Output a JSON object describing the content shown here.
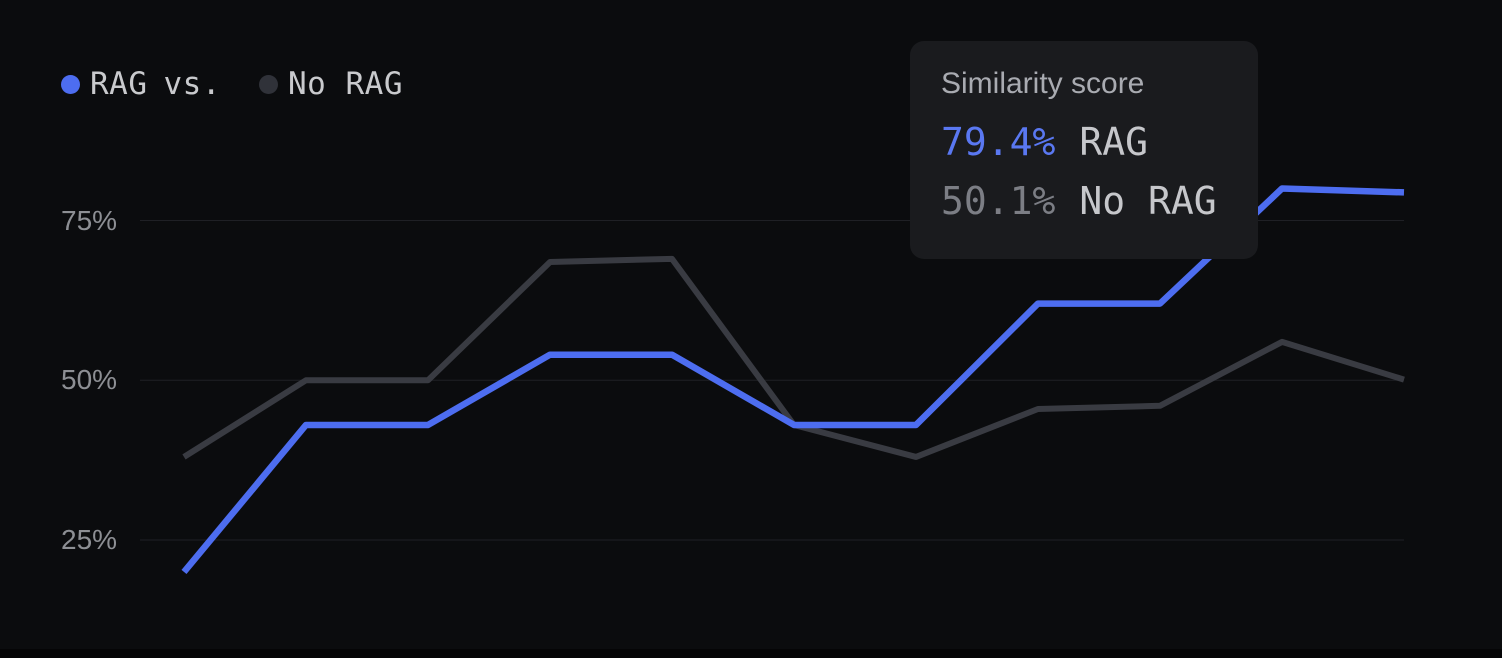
{
  "page": {
    "background": "#0b0c0e",
    "bottom_bar_color": "#050506"
  },
  "legend": {
    "items": [
      {
        "label": "RAG",
        "dot_color": "#4d6df0"
      },
      {
        "label": "No RAG",
        "dot_color": "#303239"
      }
    ],
    "separator": "vs.",
    "text_color": "#c9cacd"
  },
  "y_axis": {
    "ticks": [
      {
        "label": "75%",
        "value": 75
      },
      {
        "label": "50%",
        "value": 50
      },
      {
        "label": "25%",
        "value": 25
      }
    ],
    "text_color": "#8d8f94"
  },
  "tooltip": {
    "title": "Similarity score",
    "rows": [
      {
        "value": "79.4%",
        "label": "RAG",
        "value_color": "#5a78f2"
      },
      {
        "value": "50.1%",
        "label": "No RAG",
        "value_color": "#7c7e85"
      }
    ],
    "background": "#1a1b1e",
    "title_color": "#a9abb1",
    "label_color": "#c6c7cb"
  },
  "chart_data": {
    "type": "line",
    "title": "RAG vs. No RAG similarity score",
    "x": [
      1,
      2,
      3,
      4,
      5,
      6,
      7,
      8,
      9,
      10,
      11
    ],
    "x_labels_visible": false,
    "series": [
      {
        "name": "RAG",
        "color": "#4d6df0",
        "values": [
          20,
          43,
          43,
          54,
          54,
          43,
          43,
          62,
          62,
          80,
          79.4
        ]
      },
      {
        "name": "No RAG",
        "color": "#393b42",
        "values": [
          38,
          50,
          50,
          68.5,
          69,
          43,
          38,
          45.5,
          46,
          56,
          50.1
        ]
      }
    ],
    "ylabel": "Similarity score",
    "y_ticks": [
      25,
      50,
      75
    ],
    "gridlines": [
      25,
      50,
      75
    ],
    "grid_color": "#1f2025",
    "grid_on": true,
    "legend_position": "top-left",
    "last_point_values": {
      "RAG": 79.4,
      "No RAG": 50.1
    }
  }
}
